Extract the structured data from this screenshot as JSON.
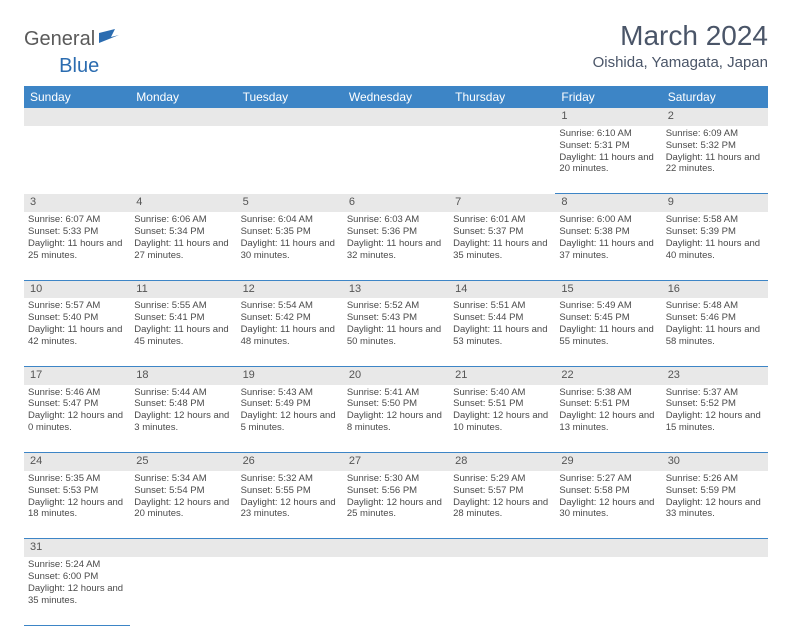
{
  "logo": {
    "general": "General",
    "blue": "Blue"
  },
  "title": "March 2024",
  "location": "Oishida, Yamagata, Japan",
  "colors": {
    "header_bg": "#3d85c6",
    "header_fg": "#ffffff",
    "daynum_bg": "#e8e8e8",
    "cell_border": "#3d85c6",
    "text": "#4a4a4a",
    "title_color": "#4a5568",
    "logo_blue": "#2b6cb0",
    "logo_gray": "#5a5a5a"
  },
  "dayHeaders": [
    "Sunday",
    "Monday",
    "Tuesday",
    "Wednesday",
    "Thursday",
    "Friday",
    "Saturday"
  ],
  "weeks": [
    [
      null,
      null,
      null,
      null,
      null,
      {
        "n": "1",
        "sr": "6:10 AM",
        "ss": "5:31 PM",
        "dl": "11 hours and 20 minutes."
      },
      {
        "n": "2",
        "sr": "6:09 AM",
        "ss": "5:32 PM",
        "dl": "11 hours and 22 minutes."
      }
    ],
    [
      {
        "n": "3",
        "sr": "6:07 AM",
        "ss": "5:33 PM",
        "dl": "11 hours and 25 minutes."
      },
      {
        "n": "4",
        "sr": "6:06 AM",
        "ss": "5:34 PM",
        "dl": "11 hours and 27 minutes."
      },
      {
        "n": "5",
        "sr": "6:04 AM",
        "ss": "5:35 PM",
        "dl": "11 hours and 30 minutes."
      },
      {
        "n": "6",
        "sr": "6:03 AM",
        "ss": "5:36 PM",
        "dl": "11 hours and 32 minutes."
      },
      {
        "n": "7",
        "sr": "6:01 AM",
        "ss": "5:37 PM",
        "dl": "11 hours and 35 minutes."
      },
      {
        "n": "8",
        "sr": "6:00 AM",
        "ss": "5:38 PM",
        "dl": "11 hours and 37 minutes."
      },
      {
        "n": "9",
        "sr": "5:58 AM",
        "ss": "5:39 PM",
        "dl": "11 hours and 40 minutes."
      }
    ],
    [
      {
        "n": "10",
        "sr": "5:57 AM",
        "ss": "5:40 PM",
        "dl": "11 hours and 42 minutes."
      },
      {
        "n": "11",
        "sr": "5:55 AM",
        "ss": "5:41 PM",
        "dl": "11 hours and 45 minutes."
      },
      {
        "n": "12",
        "sr": "5:54 AM",
        "ss": "5:42 PM",
        "dl": "11 hours and 48 minutes."
      },
      {
        "n": "13",
        "sr": "5:52 AM",
        "ss": "5:43 PM",
        "dl": "11 hours and 50 minutes."
      },
      {
        "n": "14",
        "sr": "5:51 AM",
        "ss": "5:44 PM",
        "dl": "11 hours and 53 minutes."
      },
      {
        "n": "15",
        "sr": "5:49 AM",
        "ss": "5:45 PM",
        "dl": "11 hours and 55 minutes."
      },
      {
        "n": "16",
        "sr": "5:48 AM",
        "ss": "5:46 PM",
        "dl": "11 hours and 58 minutes."
      }
    ],
    [
      {
        "n": "17",
        "sr": "5:46 AM",
        "ss": "5:47 PM",
        "dl": "12 hours and 0 minutes."
      },
      {
        "n": "18",
        "sr": "5:44 AM",
        "ss": "5:48 PM",
        "dl": "12 hours and 3 minutes."
      },
      {
        "n": "19",
        "sr": "5:43 AM",
        "ss": "5:49 PM",
        "dl": "12 hours and 5 minutes."
      },
      {
        "n": "20",
        "sr": "5:41 AM",
        "ss": "5:50 PM",
        "dl": "12 hours and 8 minutes."
      },
      {
        "n": "21",
        "sr": "5:40 AM",
        "ss": "5:51 PM",
        "dl": "12 hours and 10 minutes."
      },
      {
        "n": "22",
        "sr": "5:38 AM",
        "ss": "5:51 PM",
        "dl": "12 hours and 13 minutes."
      },
      {
        "n": "23",
        "sr": "5:37 AM",
        "ss": "5:52 PM",
        "dl": "12 hours and 15 minutes."
      }
    ],
    [
      {
        "n": "24",
        "sr": "5:35 AM",
        "ss": "5:53 PM",
        "dl": "12 hours and 18 minutes."
      },
      {
        "n": "25",
        "sr": "5:34 AM",
        "ss": "5:54 PM",
        "dl": "12 hours and 20 minutes."
      },
      {
        "n": "26",
        "sr": "5:32 AM",
        "ss": "5:55 PM",
        "dl": "12 hours and 23 minutes."
      },
      {
        "n": "27",
        "sr": "5:30 AM",
        "ss": "5:56 PM",
        "dl": "12 hours and 25 minutes."
      },
      {
        "n": "28",
        "sr": "5:29 AM",
        "ss": "5:57 PM",
        "dl": "12 hours and 28 minutes."
      },
      {
        "n": "29",
        "sr": "5:27 AM",
        "ss": "5:58 PM",
        "dl": "12 hours and 30 minutes."
      },
      {
        "n": "30",
        "sr": "5:26 AM",
        "ss": "5:59 PM",
        "dl": "12 hours and 33 minutes."
      }
    ],
    [
      {
        "n": "31",
        "sr": "5:24 AM",
        "ss": "6:00 PM",
        "dl": "12 hours and 35 minutes."
      },
      null,
      null,
      null,
      null,
      null,
      null
    ]
  ],
  "labels": {
    "sunrise": "Sunrise:",
    "sunset": "Sunset:",
    "daylight": "Daylight:"
  }
}
